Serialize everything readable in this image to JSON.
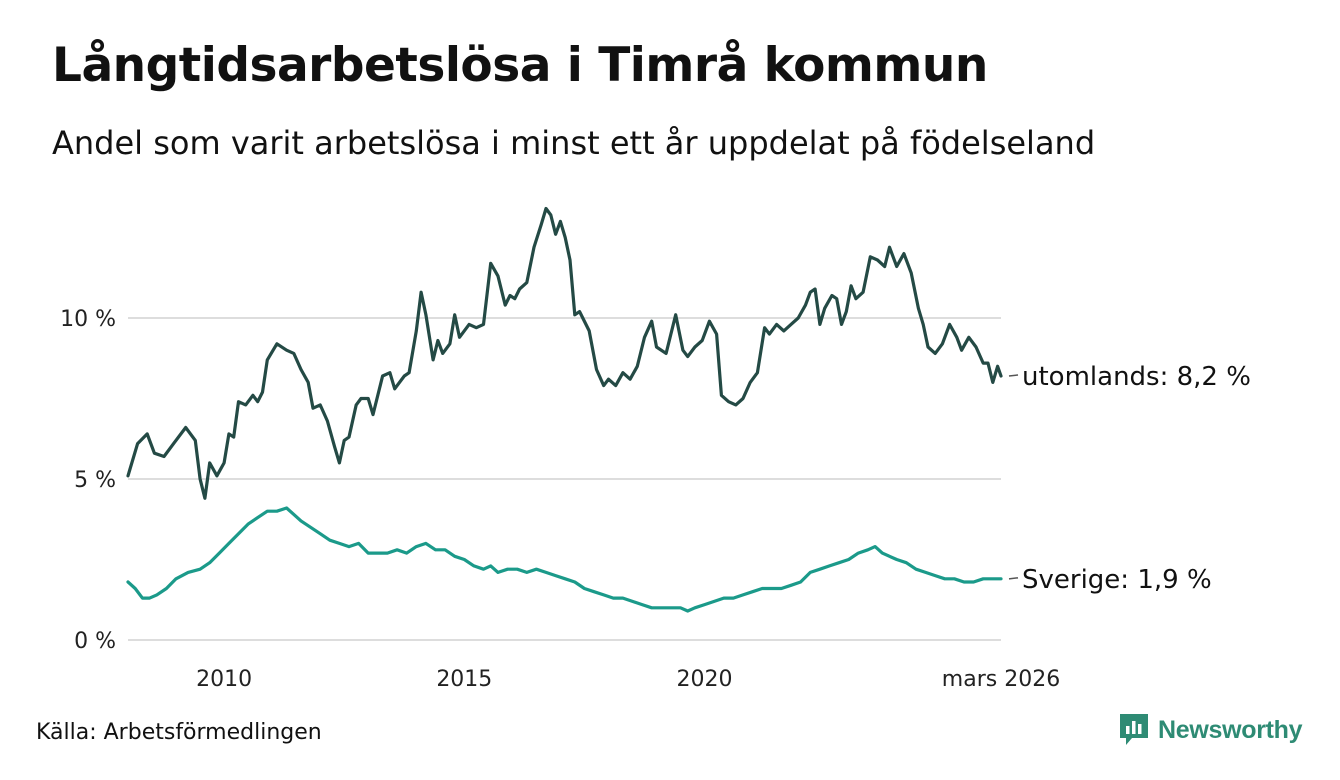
{
  "header": {
    "title": "Långtidsarbetslösa i Timrå kommun",
    "subtitle": "Andel som varit arbetslösa i minst ett år uppdelat på födelseland"
  },
  "footer": {
    "source": "Källa: Arbetsförmedlingen",
    "brand": "Newsworthy"
  },
  "colors": {
    "foreign": "#244a45",
    "sweden": "#1b9a8a",
    "grid": "#dddddd",
    "brand": "#2e8b74"
  },
  "chart_data": {
    "type": "line",
    "title": "Långtidsarbetslösa i Timrå kommun",
    "xlabel": "",
    "ylabel": "",
    "xlim": [
      2008.0,
      2026.17
    ],
    "ylim": [
      0,
      13.5
    ],
    "x_ticks": [
      {
        "value": 2010,
        "label": "2010"
      },
      {
        "value": 2015,
        "label": "2015"
      },
      {
        "value": 2020,
        "label": "2020"
      },
      {
        "value": 2026.17,
        "label": "mars 2026"
      }
    ],
    "y_ticks": [
      {
        "value": 0,
        "label": "0 %"
      },
      {
        "value": 5,
        "label": "5 %"
      },
      {
        "value": 10,
        "label": "10 %"
      }
    ],
    "series": [
      {
        "name": "utomlands",
        "end_label": "utomlands: 8,2 %",
        "color": "#244a45",
        "points": [
          [
            2008.0,
            5.1
          ],
          [
            2008.2,
            6.1
          ],
          [
            2008.4,
            6.4
          ],
          [
            2008.55,
            5.8
          ],
          [
            2008.75,
            5.7
          ],
          [
            2008.95,
            6.1
          ],
          [
            2009.2,
            6.6
          ],
          [
            2009.4,
            6.2
          ],
          [
            2009.5,
            5.0
          ],
          [
            2009.6,
            4.4
          ],
          [
            2009.7,
            5.5
          ],
          [
            2009.85,
            5.1
          ],
          [
            2010.0,
            5.5
          ],
          [
            2010.1,
            6.4
          ],
          [
            2010.2,
            6.3
          ],
          [
            2010.3,
            7.4
          ],
          [
            2010.45,
            7.3
          ],
          [
            2010.6,
            7.6
          ],
          [
            2010.7,
            7.4
          ],
          [
            2010.8,
            7.7
          ],
          [
            2010.9,
            8.7
          ],
          [
            2011.1,
            9.2
          ],
          [
            2011.3,
            9.0
          ],
          [
            2011.45,
            8.9
          ],
          [
            2011.6,
            8.4
          ],
          [
            2011.75,
            8.0
          ],
          [
            2011.85,
            7.2
          ],
          [
            2012.0,
            7.3
          ],
          [
            2012.15,
            6.8
          ],
          [
            2012.3,
            6.0
          ],
          [
            2012.4,
            5.5
          ],
          [
            2012.5,
            6.2
          ],
          [
            2012.6,
            6.3
          ],
          [
            2012.75,
            7.3
          ],
          [
            2012.85,
            7.5
          ],
          [
            2013.0,
            7.5
          ],
          [
            2013.1,
            7.0
          ],
          [
            2013.3,
            8.2
          ],
          [
            2013.45,
            8.3
          ],
          [
            2013.55,
            7.8
          ],
          [
            2013.75,
            8.2
          ],
          [
            2013.85,
            8.3
          ],
          [
            2014.0,
            9.6
          ],
          [
            2014.1,
            10.8
          ],
          [
            2014.2,
            10.1
          ],
          [
            2014.35,
            8.7
          ],
          [
            2014.45,
            9.3
          ],
          [
            2014.55,
            8.9
          ],
          [
            2014.7,
            9.2
          ],
          [
            2014.8,
            10.1
          ],
          [
            2014.9,
            9.4
          ],
          [
            2015.1,
            9.8
          ],
          [
            2015.25,
            9.7
          ],
          [
            2015.4,
            9.8
          ],
          [
            2015.55,
            11.7
          ],
          [
            2015.7,
            11.3
          ],
          [
            2015.85,
            10.4
          ],
          [
            2015.95,
            10.7
          ],
          [
            2016.05,
            10.6
          ],
          [
            2016.15,
            10.9
          ],
          [
            2016.3,
            11.1
          ],
          [
            2016.45,
            12.2
          ],
          [
            2016.6,
            12.9
          ],
          [
            2016.7,
            13.4
          ],
          [
            2016.8,
            13.2
          ],
          [
            2016.9,
            12.6
          ],
          [
            2017.0,
            13.0
          ],
          [
            2017.1,
            12.5
          ],
          [
            2017.2,
            11.8
          ],
          [
            2017.3,
            10.1
          ],
          [
            2017.4,
            10.2
          ],
          [
            2017.6,
            9.6
          ],
          [
            2017.75,
            8.4
          ],
          [
            2017.9,
            7.9
          ],
          [
            2018.0,
            8.1
          ],
          [
            2018.15,
            7.9
          ],
          [
            2018.3,
            8.3
          ],
          [
            2018.45,
            8.1
          ],
          [
            2018.6,
            8.5
          ],
          [
            2018.75,
            9.4
          ],
          [
            2018.9,
            9.9
          ],
          [
            2019.0,
            9.1
          ],
          [
            2019.2,
            8.9
          ],
          [
            2019.4,
            10.1
          ],
          [
            2019.55,
            9.0
          ],
          [
            2019.65,
            8.8
          ],
          [
            2019.8,
            9.1
          ],
          [
            2019.95,
            9.3
          ],
          [
            2020.1,
            9.9
          ],
          [
            2020.25,
            9.5
          ],
          [
            2020.35,
            7.6
          ],
          [
            2020.5,
            7.4
          ],
          [
            2020.65,
            7.3
          ],
          [
            2020.8,
            7.5
          ],
          [
            2020.95,
            8.0
          ],
          [
            2021.1,
            8.3
          ],
          [
            2021.25,
            9.7
          ],
          [
            2021.35,
            9.5
          ],
          [
            2021.5,
            9.8
          ],
          [
            2021.65,
            9.6
          ],
          [
            2021.8,
            9.8
          ],
          [
            2021.95,
            10.0
          ],
          [
            2022.1,
            10.4
          ],
          [
            2022.2,
            10.8
          ],
          [
            2022.3,
            10.9
          ],
          [
            2022.4,
            9.8
          ],
          [
            2022.5,
            10.3
          ],
          [
            2022.65,
            10.7
          ],
          [
            2022.75,
            10.6
          ],
          [
            2022.85,
            9.8
          ],
          [
            2022.95,
            10.2
          ],
          [
            2023.05,
            11.0
          ],
          [
            2023.15,
            10.6
          ],
          [
            2023.3,
            10.8
          ],
          [
            2023.45,
            11.9
          ],
          [
            2023.6,
            11.8
          ],
          [
            2023.75,
            11.6
          ],
          [
            2023.85,
            12.2
          ],
          [
            2024.0,
            11.6
          ],
          [
            2024.15,
            12.0
          ],
          [
            2024.3,
            11.4
          ],
          [
            2024.45,
            10.3
          ],
          [
            2024.55,
            9.8
          ],
          [
            2024.65,
            9.1
          ],
          [
            2024.8,
            8.9
          ],
          [
            2024.95,
            9.2
          ],
          [
            2025.1,
            9.8
          ],
          [
            2025.25,
            9.4
          ],
          [
            2025.35,
            9.0
          ],
          [
            2025.5,
            9.4
          ],
          [
            2025.65,
            9.1
          ],
          [
            2025.8,
            8.6
          ],
          [
            2025.9,
            8.6
          ],
          [
            2026.0,
            8.0
          ],
          [
            2026.1,
            8.5
          ],
          [
            2026.17,
            8.2
          ]
        ]
      },
      {
        "name": "Sverige",
        "end_label": "Sverige: 1,9 %",
        "color": "#1b9a8a",
        "points": [
          [
            2008.0,
            1.8
          ],
          [
            2008.15,
            1.6
          ],
          [
            2008.3,
            1.3
          ],
          [
            2008.45,
            1.3
          ],
          [
            2008.6,
            1.4
          ],
          [
            2008.8,
            1.6
          ],
          [
            2009.0,
            1.9
          ],
          [
            2009.25,
            2.1
          ],
          [
            2009.5,
            2.2
          ],
          [
            2009.7,
            2.4
          ],
          [
            2009.9,
            2.7
          ],
          [
            2010.1,
            3.0
          ],
          [
            2010.3,
            3.3
          ],
          [
            2010.5,
            3.6
          ],
          [
            2010.7,
            3.8
          ],
          [
            2010.9,
            4.0
          ],
          [
            2011.1,
            4.0
          ],
          [
            2011.3,
            4.1
          ],
          [
            2011.45,
            3.9
          ],
          [
            2011.6,
            3.7
          ],
          [
            2011.8,
            3.5
          ],
          [
            2012.0,
            3.3
          ],
          [
            2012.2,
            3.1
          ],
          [
            2012.4,
            3.0
          ],
          [
            2012.6,
            2.9
          ],
          [
            2012.8,
            3.0
          ],
          [
            2013.0,
            2.7
          ],
          [
            2013.2,
            2.7
          ],
          [
            2013.4,
            2.7
          ],
          [
            2013.6,
            2.8
          ],
          [
            2013.8,
            2.7
          ],
          [
            2014.0,
            2.9
          ],
          [
            2014.2,
            3.0
          ],
          [
            2014.4,
            2.8
          ],
          [
            2014.6,
            2.8
          ],
          [
            2014.8,
            2.6
          ],
          [
            2015.0,
            2.5
          ],
          [
            2015.2,
            2.3
          ],
          [
            2015.4,
            2.2
          ],
          [
            2015.55,
            2.3
          ],
          [
            2015.7,
            2.1
          ],
          [
            2015.9,
            2.2
          ],
          [
            2016.1,
            2.2
          ],
          [
            2016.3,
            2.1
          ],
          [
            2016.5,
            2.2
          ],
          [
            2016.7,
            2.1
          ],
          [
            2016.9,
            2.0
          ],
          [
            2017.1,
            1.9
          ],
          [
            2017.3,
            1.8
          ],
          [
            2017.5,
            1.6
          ],
          [
            2017.7,
            1.5
          ],
          [
            2017.9,
            1.4
          ],
          [
            2018.1,
            1.3
          ],
          [
            2018.3,
            1.3
          ],
          [
            2018.5,
            1.2
          ],
          [
            2018.7,
            1.1
          ],
          [
            2018.9,
            1.0
          ],
          [
            2019.1,
            1.0
          ],
          [
            2019.3,
            1.0
          ],
          [
            2019.5,
            1.0
          ],
          [
            2019.65,
            0.9
          ],
          [
            2019.8,
            1.0
          ],
          [
            2020.0,
            1.1
          ],
          [
            2020.2,
            1.2
          ],
          [
            2020.4,
            1.3
          ],
          [
            2020.6,
            1.3
          ],
          [
            2020.8,
            1.4
          ],
          [
            2021.0,
            1.5
          ],
          [
            2021.2,
            1.6
          ],
          [
            2021.4,
            1.6
          ],
          [
            2021.6,
            1.6
          ],
          [
            2021.8,
            1.7
          ],
          [
            2022.0,
            1.8
          ],
          [
            2022.2,
            2.1
          ],
          [
            2022.4,
            2.2
          ],
          [
            2022.6,
            2.3
          ],
          [
            2022.8,
            2.4
          ],
          [
            2023.0,
            2.5
          ],
          [
            2023.2,
            2.7
          ],
          [
            2023.4,
            2.8
          ],
          [
            2023.55,
            2.9
          ],
          [
            2023.7,
            2.7
          ],
          [
            2023.85,
            2.6
          ],
          [
            2024.0,
            2.5
          ],
          [
            2024.2,
            2.4
          ],
          [
            2024.4,
            2.2
          ],
          [
            2024.6,
            2.1
          ],
          [
            2024.8,
            2.0
          ],
          [
            2025.0,
            1.9
          ],
          [
            2025.2,
            1.9
          ],
          [
            2025.4,
            1.8
          ],
          [
            2025.6,
            1.8
          ],
          [
            2025.8,
            1.9
          ],
          [
            2026.0,
            1.9
          ],
          [
            2026.17,
            1.9
          ]
        ]
      }
    ]
  }
}
